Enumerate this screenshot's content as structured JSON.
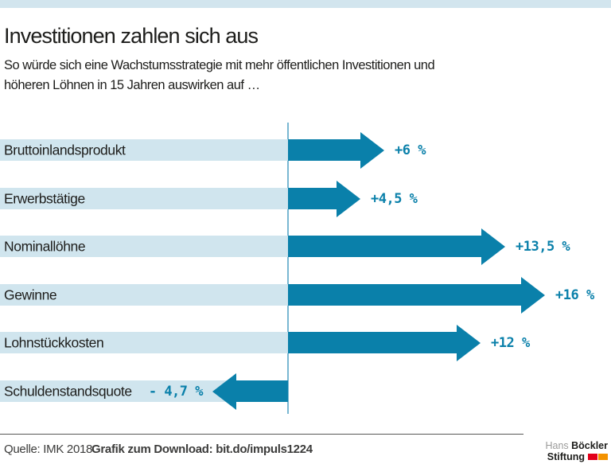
{
  "header": {
    "title": "Investitionen zahlen sich aus",
    "subtitle_line1": "So würde sich eine Wachstumsstrategie mit mehr öffentlichen Investitionen und",
    "subtitle_line2": "höheren Löhnen in 15 Jahren auswirken auf …"
  },
  "chart_data": {
    "type": "bar",
    "orientation": "horizontal",
    "title": "Investitionen zahlen sich aus",
    "subtitle": "So würde sich eine Wachstumsstrategie mit mehr öffentlichen Investitionen und höheren Löhnen in 15 Jahren auswirken auf …",
    "categories": [
      "Bruttoinlandsprodukt",
      "Erwerbstätige",
      "Nominallöhne",
      "Gewinne",
      "Lohnstückkosten",
      "Schuldenstandsquote"
    ],
    "values": [
      6,
      4.5,
      13.5,
      16,
      12,
      -4.7
    ],
    "value_labels": [
      "+6 %",
      "+4,5 %",
      "+13,5 %",
      "+16 %",
      "+12 %",
      "- 4,7 %"
    ],
    "unit": "%",
    "baseline": 0,
    "xlim": [
      -6,
      20
    ],
    "grid": false,
    "legend": false,
    "bar_style": "arrow",
    "colors": {
      "bar": "#0a80aa",
      "category_band": "#d0e5ee",
      "baseline_axis": "#79b7d2",
      "value_text": "#0a80aa"
    }
  },
  "footer": {
    "source": "Quelle: IMK 2018",
    "download": "Grafik zum Download: bit.do/impuls1224"
  },
  "logo": {
    "line1_regular": "Hans",
    "line1_bold": "Böckler",
    "line2_bold": "Stiftung",
    "mark_colors": [
      "#e2001a",
      "#f39200"
    ]
  },
  "colors": {
    "top_accent_bar": "#d2e5ee",
    "text_dark": "#1d1d1b",
    "footer_text": "#3c3c3b"
  }
}
